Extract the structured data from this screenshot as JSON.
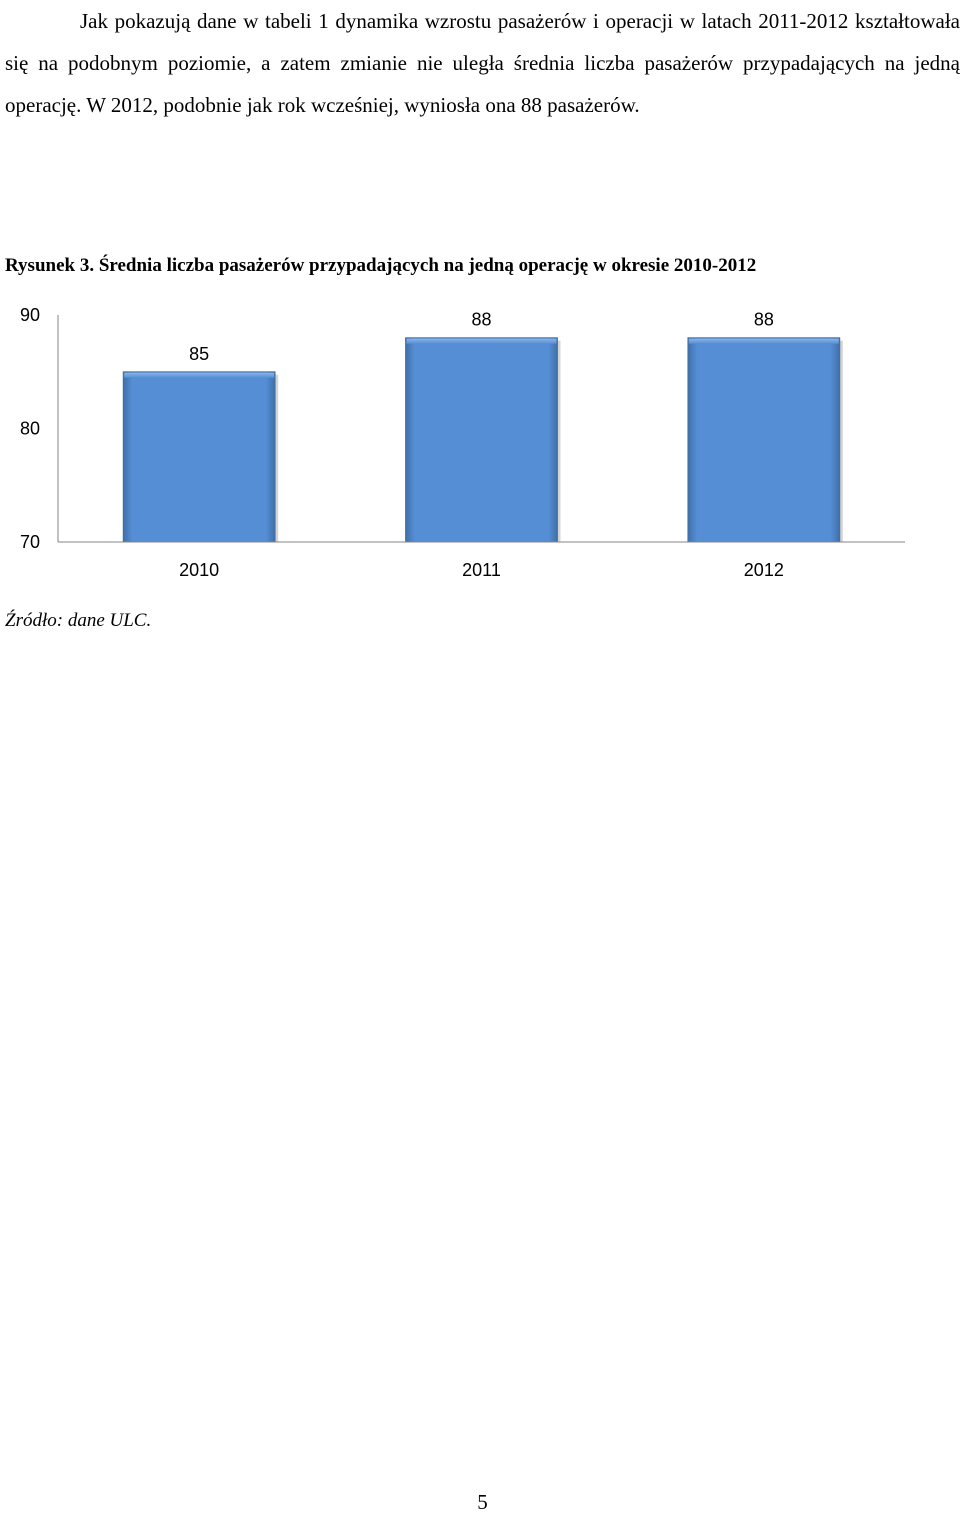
{
  "paragraph": "Jak pokazują dane w tabeli 1 dynamika wzrostu pasażerów i operacji w latach 2011-2012 kształtowała się na podobnym poziomie, a zatem zmianie nie uległa średnia liczba pasażerów przypadających na jedną operację. W 2012, podobnie jak rok wcześniej, wyniosła ona 88 pasażerów.",
  "caption": "Rysunek 3. Średnia liczba pasażerów przypadających na jedną operację w okresie 2010-2012",
  "chart_data": {
    "type": "bar",
    "categories": [
      "2010",
      "2011",
      "2012"
    ],
    "values": [
      85,
      88,
      88
    ],
    "data_labels": [
      "85",
      "88",
      "88"
    ],
    "y_ticks": [
      90,
      80,
      70
    ],
    "ylim": [
      70,
      90
    ],
    "grid": false,
    "legend": "none",
    "bar_color": "#558ed5",
    "title": "",
    "xlabel": "",
    "ylabel": ""
  },
  "source": "Źródło: dane ULC.",
  "page_number": "5"
}
